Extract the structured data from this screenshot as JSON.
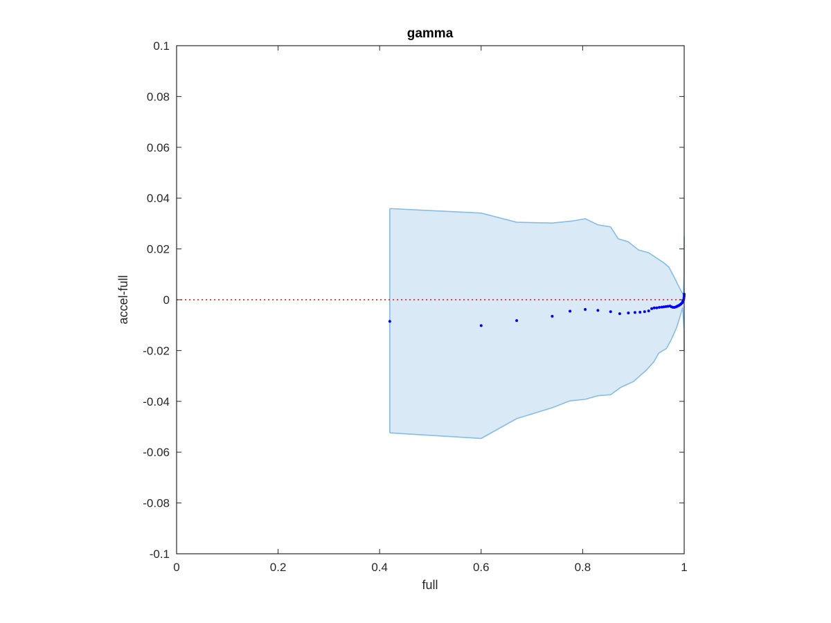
{
  "chart_data": {
    "type": "scatter",
    "title": "gamma",
    "xlabel": "full",
    "ylabel": "accel-full",
    "xlim": [
      0,
      1
    ],
    "ylim": [
      -0.1,
      0.1
    ],
    "xticks": [
      0,
      0.2,
      0.4,
      0.6,
      0.8,
      1
    ],
    "xtick_labels": [
      "0",
      "0.2",
      "0.4",
      "0.6",
      "0.8",
      "1"
    ],
    "yticks": [
      -0.1,
      -0.08,
      -0.06,
      -0.04,
      -0.02,
      0,
      0.02,
      0.04,
      0.06,
      0.08,
      0.1
    ],
    "ytick_labels": [
      "-0.1",
      "-0.08",
      "-0.06",
      "-0.04",
      "-0.02",
      "0",
      "0.02",
      "0.04",
      "0.06",
      "0.08",
      "0.1"
    ],
    "grid": false,
    "reference_line": {
      "y": 0,
      "style": "dotted",
      "color": "#ff0000"
    },
    "band": {
      "fill": "#d9e9f5",
      "edge": "#85bde4",
      "upper": [
        [
          0.42,
          0.0359
        ],
        [
          0.6,
          0.0341
        ],
        [
          0.67,
          0.0305
        ],
        [
          0.74,
          0.0302
        ],
        [
          0.78,
          0.031
        ],
        [
          0.805,
          0.0319
        ],
        [
          0.83,
          0.0295
        ],
        [
          0.855,
          0.0287
        ],
        [
          0.87,
          0.024
        ],
        [
          0.89,
          0.0228
        ],
        [
          0.91,
          0.0196
        ],
        [
          0.93,
          0.0185
        ],
        [
          0.945,
          0.0165
        ],
        [
          0.96,
          0.0145
        ],
        [
          0.97,
          0.0128
        ],
        [
          0.98,
          0.009
        ],
        [
          0.99,
          0.005
        ],
        [
          0.995,
          0.003
        ],
        [
          0.9985,
          0.002
        ],
        [
          0.9997,
          0.01
        ],
        [
          1.0,
          0.025
        ]
      ],
      "lower": [
        [
          0.42,
          -0.0524
        ],
        [
          0.6,
          -0.0546
        ],
        [
          0.67,
          -0.0468
        ],
        [
          0.74,
          -0.0425
        ],
        [
          0.775,
          -0.0398
        ],
        [
          0.805,
          -0.0392
        ],
        [
          0.83,
          -0.0378
        ],
        [
          0.855,
          -0.0374
        ],
        [
          0.875,
          -0.0345
        ],
        [
          0.9,
          -0.0322
        ],
        [
          0.925,
          -0.0278
        ],
        [
          0.94,
          -0.0245
        ],
        [
          0.95,
          -0.021
        ],
        [
          0.965,
          -0.0192
        ],
        [
          0.975,
          -0.0155
        ],
        [
          0.985,
          -0.011
        ],
        [
          0.992,
          -0.0065
        ],
        [
          0.997,
          -0.003
        ],
        [
          0.9997,
          -0.012
        ],
        [
          1.0,
          -0.02
        ]
      ]
    },
    "series": [
      {
        "color": "#0000ff",
        "points": [
          [
            0.42,
            -0.0085
          ],
          [
            0.6,
            -0.0102
          ],
          [
            0.67,
            -0.0082
          ],
          [
            0.74,
            -0.0065
          ],
          [
            0.775,
            -0.0045
          ],
          [
            0.805,
            -0.0038
          ],
          [
            0.83,
            -0.0042
          ],
          [
            0.855,
            -0.0047
          ],
          [
            0.873,
            -0.0055
          ],
          [
            0.89,
            -0.0052
          ],
          [
            0.903,
            -0.005
          ],
          [
            0.913,
            -0.0049
          ],
          [
            0.922,
            -0.0047
          ],
          [
            0.93,
            -0.0044
          ],
          [
            0.936,
            -0.0035
          ],
          [
            0.941,
            -0.0032
          ],
          [
            0.946,
            -0.0032
          ],
          [
            0.951,
            -0.003
          ],
          [
            0.956,
            -0.0029
          ],
          [
            0.96,
            -0.0028
          ],
          [
            0.964,
            -0.0027
          ],
          [
            0.968,
            -0.0026
          ],
          [
            0.972,
            -0.0025
          ],
          [
            0.975,
            -0.0028
          ],
          [
            0.978,
            -0.003
          ],
          [
            0.981,
            -0.003
          ],
          [
            0.984,
            -0.0028
          ],
          [
            0.986,
            -0.0026
          ],
          [
            0.988,
            -0.0024
          ],
          [
            0.99,
            -0.0022
          ],
          [
            0.992,
            -0.0019
          ],
          [
            0.994,
            -0.0016
          ],
          [
            0.996,
            -0.0012
          ],
          [
            0.997,
            -0.0008
          ],
          [
            0.998,
            -0.0004
          ],
          [
            0.999,
            0.0
          ],
          [
            0.9995,
            0.0007
          ],
          [
            1.0,
            0.0015
          ],
          [
            1.0,
            0.0022
          ]
        ]
      }
    ]
  }
}
